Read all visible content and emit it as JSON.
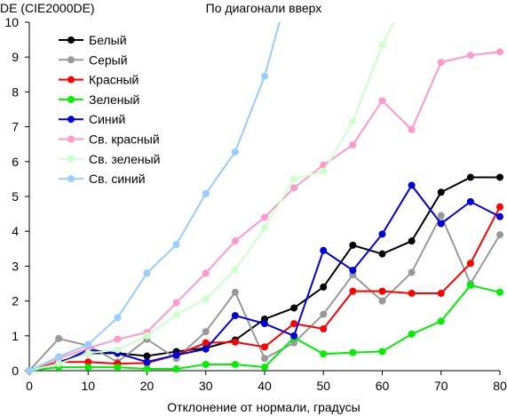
{
  "chart_data": {
    "type": "line",
    "title": "По диагонали вверх",
    "ylabel": "DE (CIE2000DE)",
    "xlabel": "Отклонение от нормали, градусы",
    "xlim": [
      0,
      80
    ],
    "ylim": [
      0,
      10
    ],
    "x_ticks": [
      0,
      10,
      20,
      30,
      40,
      50,
      60,
      70,
      80
    ],
    "y_ticks": [
      0,
      1,
      2,
      3,
      4,
      5,
      6,
      7,
      8,
      9,
      10
    ],
    "grid": false,
    "legend_position": "top-left",
    "x": [
      0,
      5,
      10,
      15,
      20,
      25,
      30,
      35,
      40,
      45,
      50,
      55,
      60,
      65,
      70,
      75,
      80
    ],
    "series": [
      {
        "name": "Белый",
        "color": "#000000",
        "values": [
          0,
          0.25,
          0.5,
          0.5,
          0.42,
          0.55,
          0.65,
          0.88,
          1.48,
          1.8,
          2.4,
          3.6,
          3.35,
          3.72,
          5.12,
          5.55,
          5.55
        ]
      },
      {
        "name": "Серый",
        "color": "#999999",
        "values": [
          0,
          0.92,
          0.72,
          0.25,
          0.9,
          0.35,
          1.12,
          2.25,
          0.35,
          0.8,
          1.62,
          2.75,
          2.0,
          2.82,
          4.45,
          2.5,
          3.9
        ]
      },
      {
        "name": "Красный",
        "color": "#ff0000",
        "values": [
          0,
          0.25,
          0.25,
          0.2,
          0.22,
          0.45,
          0.8,
          0.82,
          0.68,
          1.35,
          1.2,
          2.28,
          2.28,
          2.22,
          2.22,
          3.08,
          4.7
        ]
      },
      {
        "name": "Зеленый",
        "color": "#00ee00",
        "values": [
          0,
          0.1,
          0.1,
          0.1,
          0.05,
          0.05,
          0.18,
          0.18,
          0.1,
          0.95,
          0.48,
          0.52,
          0.55,
          1.05,
          1.42,
          2.45,
          2.25
        ]
      },
      {
        "name": "Синий",
        "color": "#0000dd",
        "values": [
          0,
          0.2,
          0.6,
          0.5,
          0.25,
          0.45,
          0.62,
          1.58,
          1.35,
          1.0,
          3.45,
          2.88,
          3.92,
          5.32,
          4.22,
          4.85,
          4.42
        ]
      },
      {
        "name": "Св. красный",
        "color": "#ff99cc",
        "values": [
          0,
          0.35,
          0.65,
          0.9,
          1.1,
          1.95,
          2.8,
          3.72,
          4.4,
          5.25,
          5.9,
          6.48,
          7.75,
          6.92,
          8.85,
          9.05,
          9.15
        ]
      },
      {
        "name": "Св. зеленый",
        "color": "#ccffcc",
        "values": [
          0,
          0.2,
          0.5,
          0.6,
          1.0,
          1.6,
          2.05,
          2.9,
          4.1,
          5.5,
          5.72,
          7.15,
          9.35,
          11.0,
          null,
          null,
          null
        ]
      },
      {
        "name": "Св. синий",
        "color": "#99ccff",
        "values": [
          0,
          0.4,
          0.75,
          1.52,
          2.8,
          3.62,
          5.08,
          6.28,
          8.45,
          11.5,
          null,
          null,
          null,
          null,
          null,
          null,
          null
        ]
      }
    ]
  }
}
